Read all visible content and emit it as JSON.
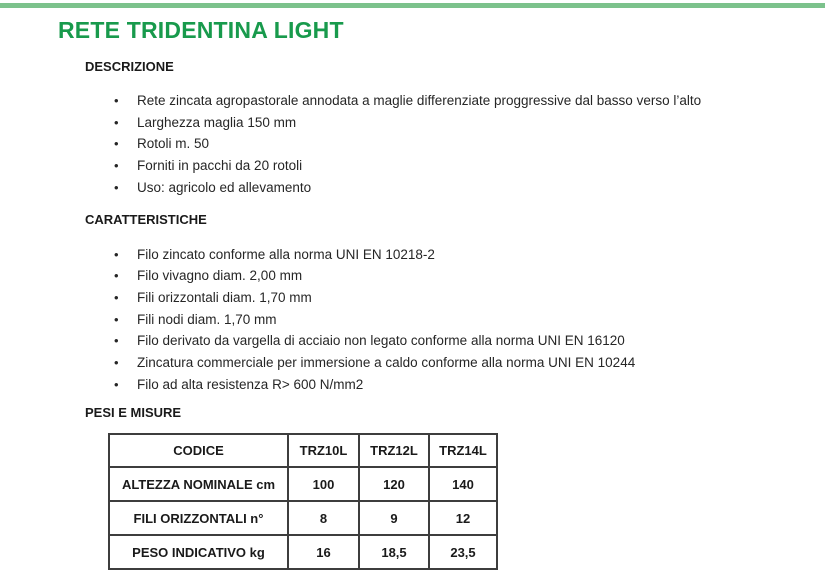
{
  "page": {
    "title": "RETE TRIDENTINA LIGHT"
  },
  "colors": {
    "accent_green": "#189a4c",
    "top_bar_green": "#7cc28c"
  },
  "bullet_glyph": "•",
  "sections": {
    "descrizione": {
      "heading": "DESCRIZIONE",
      "items": [
        "Rete zincata agropastorale annodata a maglie differenziate proggressive dal basso verso l’alto",
        "Larghezza maglia 150 mm",
        "Rotoli m. 50",
        "Forniti in pacchi da 20 rotoli",
        "Uso: agricolo ed allevamento"
      ]
    },
    "caratteristiche": {
      "heading": "CARATTERISTICHE",
      "items": [
        "Filo zincato conforme alla norma UNI EN 10218-2",
        "Filo vivagno diam. 2,00 mm",
        "Fili orizzontali diam. 1,70 mm",
        "Fili nodi diam. 1,70 mm",
        "Filo derivato da vargella di acciaio non legato conforme alla norma UNI EN 16120",
        "Zincatura commerciale per immersione a caldo conforme alla norma  UNI EN 10244",
        "Filo ad alta resistenza R> 600 N/mm2"
      ]
    },
    "pesi_e_misure": {
      "heading": "PESI E MISURE",
      "table": {
        "header": [
          "CODICE",
          "TRZ10L",
          "TRZ12L",
          "TRZ14L"
        ],
        "rows": [
          {
            "label": "ALTEZZA NOMINALE cm",
            "values": [
              "100",
              "120",
              "140"
            ]
          },
          {
            "label": "FILI ORIZZONTALI n°",
            "values": [
              "8",
              "9",
              "12"
            ]
          },
          {
            "label": "PESO INDICATIVO kg",
            "values": [
              "16",
              "18,5",
              "23,5"
            ]
          }
        ]
      }
    }
  }
}
